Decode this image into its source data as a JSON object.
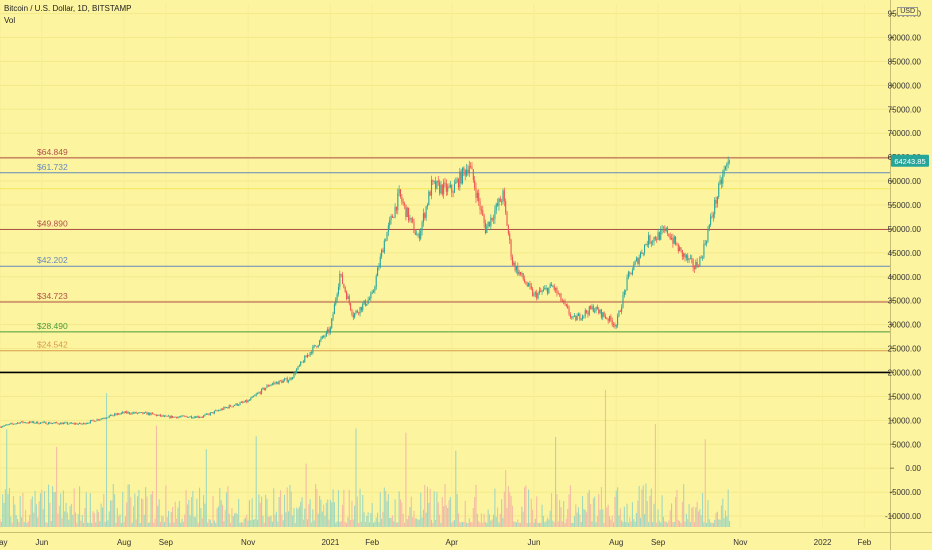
{
  "header": {
    "title": "Bitcoin / U.S. Dollar, 1D, BITSTAMP",
    "indicator": "Vol",
    "currency": "USD"
  },
  "colors": {
    "background": "#fdf4a0",
    "up": "#26a69a",
    "down": "#ef5350",
    "volume_up": "#8fd2c4",
    "volume_down": "#f3b0a6"
  },
  "chart_data": {
    "type": "candlestick",
    "title": "Bitcoin / U.S. Dollar, 1D, BITSTAMP",
    "price_axis": {
      "ticks": [
        95000,
        90000,
        85000,
        80000,
        75000,
        70000,
        65000,
        60000,
        55000,
        50000,
        45000,
        40000,
        35000,
        30000,
        25000,
        20000,
        15000,
        10000,
        5000,
        0,
        -5000,
        -10000
      ],
      "tick_labels": [
        "95000.00",
        "90000.00",
        "85000.00",
        "80000.00",
        "75000.00",
        "70000.00",
        "65000.00",
        "60000.00",
        "55000.00",
        "50000.00",
        "45000.00",
        "40000.00",
        "35000.00",
        "30000.00",
        "25000.00",
        "20000.00",
        "15000.00",
        "10000.00",
        "5000.00",
        "0.00",
        "-5000.00",
        "-10000.00"
      ],
      "range": [
        -12500,
        97000
      ]
    },
    "time_axis": {
      "ticks": [
        {
          "label": "May",
          "day": 0
        },
        {
          "label": "Jun",
          "day": 31
        },
        {
          "label": "Aug",
          "day": 92
        },
        {
          "label": "Sep",
          "day": 123
        },
        {
          "label": "Nov",
          "day": 184
        },
        {
          "label": "2021",
          "day": 245
        },
        {
          "label": "Feb",
          "day": 276
        },
        {
          "label": "Apr",
          "day": 335
        },
        {
          "label": "Jun",
          "day": 396
        },
        {
          "label": "Aug",
          "day": 457
        },
        {
          "label": "Sep",
          "day": 488
        },
        {
          "label": "Nov",
          "day": 549
        },
        {
          "label": "2022",
          "day": 610
        },
        {
          "label": "Feb",
          "day": 641
        }
      ],
      "range": [
        0,
        660
      ]
    },
    "last_price": {
      "value": 64243.85,
      "label": "64243.85"
    },
    "levels": [
      {
        "label": "$64.849",
        "value": 64849,
        "color": "#b0504a"
      },
      {
        "label": "$61.732",
        "value": 61732,
        "color": "#6688bb"
      },
      {
        "label": "",
        "value": 58400,
        "color": "#f3e75a"
      },
      {
        "label": "$49.890",
        "value": 49890,
        "color": "#b0504a"
      },
      {
        "label": "$42.202",
        "value": 42202,
        "color": "#6688bb"
      },
      {
        "label": "$34.723",
        "value": 34723,
        "color": "#b0504a"
      },
      {
        "label": "$28.490",
        "value": 28490,
        "color": "#4a9a3a"
      },
      {
        "label": "$24.542",
        "value": 24542,
        "color": "#d69a4a"
      },
      {
        "label": "",
        "value": 20000,
        "color": "#000000"
      }
    ],
    "price_path": [
      {
        "day": 0,
        "close": 8700
      },
      {
        "day": 15,
        "close": 9600
      },
      {
        "day": 31,
        "close": 9500
      },
      {
        "day": 61,
        "close": 9250
      },
      {
        "day": 80,
        "close": 10800
      },
      {
        "day": 92,
        "close": 11600
      },
      {
        "day": 110,
        "close": 11400
      },
      {
        "day": 123,
        "close": 10700
      },
      {
        "day": 150,
        "close": 10800
      },
      {
        "day": 170,
        "close": 12900
      },
      {
        "day": 184,
        "close": 14000
      },
      {
        "day": 200,
        "close": 17500
      },
      {
        "day": 215,
        "close": 18600
      },
      {
        "day": 229,
        "close": 24000
      },
      {
        "day": 245,
        "close": 29000
      },
      {
        "day": 252,
        "close": 40500
      },
      {
        "day": 262,
        "close": 32000
      },
      {
        "day": 276,
        "close": 36000
      },
      {
        "day": 285,
        "close": 47500
      },
      {
        "day": 296,
        "close": 57000
      },
      {
        "day": 310,
        "close": 48000
      },
      {
        "day": 320,
        "close": 59000
      },
      {
        "day": 335,
        "close": 58000
      },
      {
        "day": 348,
        "close": 63500
      },
      {
        "day": 360,
        "close": 50000
      },
      {
        "day": 373,
        "close": 57000
      },
      {
        "day": 380,
        "close": 43000
      },
      {
        "day": 396,
        "close": 36000
      },
      {
        "day": 410,
        "close": 38000
      },
      {
        "day": 425,
        "close": 31000
      },
      {
        "day": 440,
        "close": 33500
      },
      {
        "day": 457,
        "close": 30000
      },
      {
        "day": 466,
        "close": 40000
      },
      {
        "day": 480,
        "close": 47500
      },
      {
        "day": 495,
        "close": 49500
      },
      {
        "day": 505,
        "close": 45000
      },
      {
        "day": 515,
        "close": 42000
      },
      {
        "day": 520,
        "close": 44000
      },
      {
        "day": 530,
        "close": 55000
      },
      {
        "day": 537,
        "close": 62000
      },
      {
        "day": 541,
        "close": 64243.85
      }
    ]
  }
}
